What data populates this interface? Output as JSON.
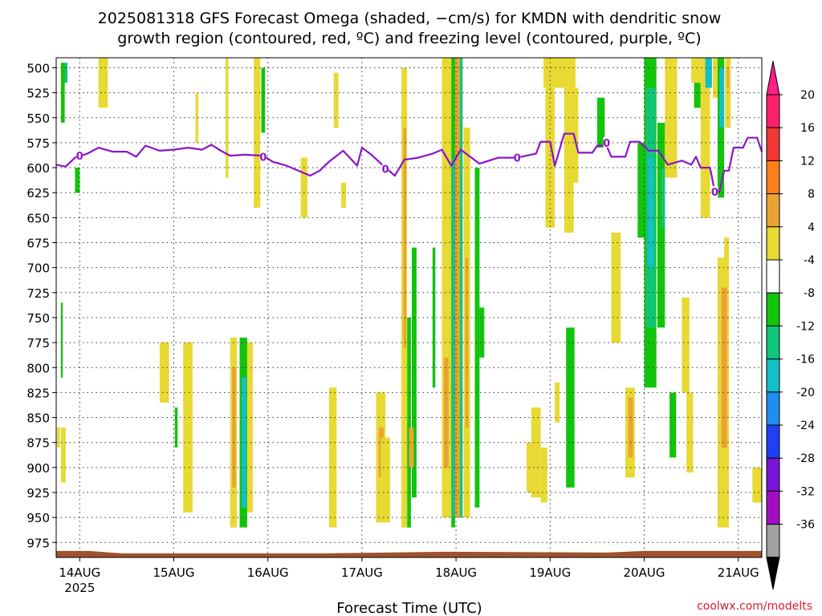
{
  "chart_data": {
    "type": "heatmap",
    "title_line1": "2025081318 GFS Forecast Omega (shaded, −cm/s) for KMDN with dendritic snow",
    "title_line2": "growth region (contoured, red, ºC) and freezing level (contoured, purple, ºC)",
    "xlabel": "Forecast Time (UTC)",
    "credit": "coolwx.com/modelts",
    "y_axis": {
      "labels": [
        "500",
        "525",
        "550",
        "575",
        "600",
        "625",
        "650",
        "675",
        "700",
        "725",
        "750",
        "775",
        "800",
        "825",
        "850",
        "875",
        "900",
        "925",
        "950",
        "975"
      ],
      "range_hpa": [
        490,
        990
      ]
    },
    "x_axis": {
      "ticks": [
        {
          "label": "14AUG",
          "sublabel": "2025",
          "day": 0
        },
        {
          "label": "15AUG",
          "sublabel": "",
          "day": 1
        },
        {
          "label": "16AUG",
          "sublabel": "",
          "day": 2
        },
        {
          "label": "17AUG",
          "sublabel": "",
          "day": 3
        },
        {
          "label": "18AUG",
          "sublabel": "",
          "day": 4
        },
        {
          "label": "19AUG",
          "sublabel": "",
          "day": 5
        },
        {
          "label": "20AUG",
          "sublabel": "",
          "day": 6
        },
        {
          "label": "21AUG",
          "sublabel": "",
          "day": 7
        }
      ],
      "range_days": [
        -0.25,
        7.25
      ]
    },
    "grid": true,
    "legend_position": "right",
    "colorbar": {
      "labels": [
        "20",
        "16",
        "12",
        "8",
        "4",
        "-4",
        "-8",
        "-12",
        "-16",
        "-20",
        "-24",
        "-28",
        "-32",
        "-36"
      ],
      "colors": [
        "#ff1f6b",
        "#f23737",
        "#ff7f1a",
        "#eaa333",
        "#e8d933",
        "#ffffff",
        "#12c40c",
        "#12c47a",
        "#14bfc7",
        "#1f8cf0",
        "#1f3ff2",
        "#7a14d6",
        "#a20fc2",
        "#a0a0a0"
      ],
      "top_arrow_color": "#ff1f89",
      "bottom_arrow_color": "#000000"
    },
    "terrain_color": "#a0522d",
    "freezing_level": {
      "color": "#8c14c8",
      "label": "0",
      "points": [
        [
          -0.25,
          597
        ],
        [
          -0.15,
          599
        ],
        [
          -0.05,
          590
        ],
        [
          0.08,
          586
        ],
        [
          0.2,
          580
        ],
        [
          0.35,
          584
        ],
        [
          0.5,
          584
        ],
        [
          0.6,
          589
        ],
        [
          0.7,
          578
        ],
        [
          0.85,
          583
        ],
        [
          1.0,
          582
        ],
        [
          1.15,
          580
        ],
        [
          1.3,
          582
        ],
        [
          1.4,
          577
        ],
        [
          1.5,
          583
        ],
        [
          1.6,
          588
        ],
        [
          1.75,
          587
        ],
        [
          1.95,
          588
        ],
        [
          2.05,
          594
        ],
        [
          2.2,
          598
        ],
        [
          2.3,
          602
        ],
        [
          2.45,
          608
        ],
        [
          2.55,
          603
        ],
        [
          2.65,
          594
        ],
        [
          2.8,
          583
        ],
        [
          2.95,
          598
        ],
        [
          3.0,
          580
        ],
        [
          3.1,
          587
        ],
        [
          3.25,
          600
        ],
        [
          3.35,
          608
        ],
        [
          3.45,
          592
        ],
        [
          3.6,
          590
        ],
        [
          3.75,
          586
        ],
        [
          3.85,
          582
        ],
        [
          3.95,
          598
        ],
        [
          4.05,
          582
        ],
        [
          4.15,
          589
        ],
        [
          4.25,
          596
        ],
        [
          4.45,
          590
        ],
        [
          4.65,
          590
        ],
        [
          4.85,
          586
        ],
        [
          4.9,
          574
        ],
        [
          5.0,
          574
        ],
        [
          5.05,
          598
        ],
        [
          5.15,
          566
        ],
        [
          5.25,
          566
        ],
        [
          5.3,
          585
        ],
        [
          5.45,
          585
        ],
        [
          5.5,
          578
        ],
        [
          5.6,
          578
        ],
        [
          5.65,
          589
        ],
        [
          5.8,
          589
        ],
        [
          5.85,
          574
        ],
        [
          5.95,
          574
        ],
        [
          6.05,
          583
        ],
        [
          6.15,
          583
        ],
        [
          6.25,
          597
        ],
        [
          6.4,
          593
        ],
        [
          6.5,
          597
        ],
        [
          6.55,
          589
        ],
        [
          6.6,
          600
        ],
        [
          6.7,
          600
        ],
        [
          6.75,
          624
        ],
        [
          6.8,
          624
        ],
        [
          6.85,
          603
        ],
        [
          6.9,
          603
        ],
        [
          6.95,
          580
        ],
        [
          7.05,
          580
        ],
        [
          7.1,
          570
        ],
        [
          7.2,
          570
        ],
        [
          7.25,
          584
        ]
      ],
      "label_positions": [
        [
          0.0,
          588
        ],
        [
          1.95,
          589
        ],
        [
          3.25,
          601
        ],
        [
          4.65,
          590
        ],
        [
          5.6,
          575
        ],
        [
          6.75,
          624
        ]
      ]
    },
    "omega_patches": [
      {
        "t0": -0.2,
        "t1": -0.16,
        "p0": 495,
        "p1": 555,
        "value": -6
      },
      {
        "t0": -0.16,
        "t1": -0.13,
        "p0": 495,
        "p1": 515,
        "value": -9
      },
      {
        "t0": -0.05,
        "t1": 0.0,
        "p0": 600,
        "p1": 625,
        "value": -6
      },
      {
        "t0": -0.2,
        "t1": -0.18,
        "p0": 735,
        "p1": 810,
        "value": -6
      },
      {
        "t0": -0.2,
        "t1": -0.15,
        "p0": 860,
        "p1": 915,
        "value": 6
      },
      {
        "t0": -0.24,
        "t1": -0.21,
        "p0": 860,
        "p1": 880,
        "value": 6
      },
      {
        "t0": 0.2,
        "t1": 0.3,
        "p0": 490,
        "p1": 540,
        "value": 6
      },
      {
        "t0": 0.85,
        "t1": 0.95,
        "p0": 775,
        "p1": 835,
        "value": 6
      },
      {
        "t0": 1.01,
        "t1": 1.04,
        "p0": 840,
        "p1": 880,
        "value": -6
      },
      {
        "t0": 1.1,
        "t1": 1.2,
        "p0": 775,
        "p1": 945,
        "value": 6
      },
      {
        "t0": 1.23,
        "t1": 1.26,
        "p0": 525,
        "p1": 575,
        "value": 6
      },
      {
        "t0": 1.55,
        "t1": 1.58,
        "p0": 490,
        "p1": 610,
        "value": 6
      },
      {
        "t0": 1.85,
        "t1": 1.92,
        "p0": 490,
        "p1": 640,
        "value": 6
      },
      {
        "t0": 1.93,
        "t1": 1.97,
        "p0": 500,
        "p1": 565,
        "value": -6
      },
      {
        "t0": 1.6,
        "t1": 1.67,
        "p0": 770,
        "p1": 960,
        "value": 6
      },
      {
        "t0": 1.62,
        "t1": 1.66,
        "p0": 800,
        "p1": 920,
        "value": 10
      },
      {
        "t0": 1.7,
        "t1": 1.78,
        "p0": 770,
        "p1": 960,
        "value": -6
      },
      {
        "t0": 1.72,
        "t1": 1.77,
        "p0": 810,
        "p1": 940,
        "value": -12
      },
      {
        "t0": 1.78,
        "t1": 1.84,
        "p0": 775,
        "p1": 945,
        "value": 6
      },
      {
        "t0": 2.35,
        "t1": 2.42,
        "p0": 590,
        "p1": 650,
        "value": 6
      },
      {
        "t0": 2.7,
        "t1": 2.75,
        "p0": 505,
        "p1": 560,
        "value": 6
      },
      {
        "t0": 2.78,
        "t1": 2.83,
        "p0": 615,
        "p1": 640,
        "value": 6
      },
      {
        "t0": 2.65,
        "t1": 2.73,
        "p0": 820,
        "p1": 960,
        "value": 6
      },
      {
        "t0": 3.15,
        "t1": 3.25,
        "p0": 825,
        "p1": 955,
        "value": 6
      },
      {
        "t0": 3.18,
        "t1": 3.23,
        "p0": 860,
        "p1": 910,
        "value": 10
      },
      {
        "t0": 3.2,
        "t1": 3.3,
        "p0": 870,
        "p1": 955,
        "value": 6
      },
      {
        "t0": 3.42,
        "t1": 3.48,
        "p0": 500,
        "p1": 960,
        "value": 6
      },
      {
        "t0": 3.44,
        "t1": 3.47,
        "p0": 560,
        "p1": 780,
        "value": 10
      },
      {
        "t0": 3.48,
        "t1": 3.52,
        "p0": 750,
        "p1": 960,
        "value": -6
      },
      {
        "t0": 3.53,
        "t1": 3.58,
        "p0": 680,
        "p1": 930,
        "value": -6
      },
      {
        "t0": 3.5,
        "t1": 3.55,
        "p0": 860,
        "p1": 900,
        "value": 10
      },
      {
        "t0": 3.75,
        "t1": 3.78,
        "p0": 680,
        "p1": 820,
        "value": -6
      },
      {
        "t0": 3.85,
        "t1": 3.95,
        "p0": 490,
        "p1": 950,
        "value": 6
      },
      {
        "t0": 3.87,
        "t1": 3.92,
        "p0": 790,
        "p1": 900,
        "value": 10
      },
      {
        "t0": 3.95,
        "t1": 3.99,
        "p0": 490,
        "p1": 960,
        "value": -6
      },
      {
        "t0": 3.96,
        "t1": 3.98,
        "p0": 590,
        "p1": 950,
        "value": -14
      },
      {
        "t0": 3.99,
        "t1": 4.04,
        "p0": 490,
        "p1": 950,
        "value": 10
      },
      {
        "t0": 4.04,
        "t1": 4.07,
        "p0": 490,
        "p1": 950,
        "value": -8
      },
      {
        "t0": 4.08,
        "t1": 4.15,
        "p0": 560,
        "p1": 950,
        "value": 6
      },
      {
        "t0": 4.1,
        "t1": 4.13,
        "p0": 690,
        "p1": 860,
        "value": 10
      },
      {
        "t0": 4.2,
        "t1": 4.25,
        "p0": 600,
        "p1": 940,
        "value": -6
      },
      {
        "t0": 4.25,
        "t1": 4.3,
        "p0": 740,
        "p1": 790,
        "value": -6
      },
      {
        "t0": 4.8,
        "t1": 4.9,
        "p0": 840,
        "p1": 930,
        "value": 6
      },
      {
        "t0": 4.9,
        "t1": 4.97,
        "p0": 880,
        "p1": 935,
        "value": 6
      },
      {
        "t0": 4.75,
        "t1": 4.82,
        "p0": 875,
        "p1": 925,
        "value": 6
      },
      {
        "t0": 4.93,
        "t1": 5.27,
        "p0": 490,
        "p1": 520,
        "value": 6
      },
      {
        "t0": 4.95,
        "t1": 5.05,
        "p0": 520,
        "p1": 660,
        "value": 6
      },
      {
        "t0": 5.15,
        "t1": 5.25,
        "p0": 520,
        "p1": 665,
        "value": 6
      },
      {
        "t0": 5.2,
        "t1": 5.3,
        "p0": 520,
        "p1": 615,
        "value": 6
      },
      {
        "t0": 5.05,
        "t1": 5.1,
        "p0": 815,
        "p1": 855,
        "value": 6
      },
      {
        "t0": 5.17,
        "t1": 5.26,
        "p0": 760,
        "p1": 920,
        "value": -6
      },
      {
        "t0": 5.65,
        "t1": 5.75,
        "p0": 665,
        "p1": 775,
        "value": 6
      },
      {
        "t0": 5.5,
        "t1": 5.58,
        "p0": 530,
        "p1": 580,
        "value": -6
      },
      {
        "t0": 5.8,
        "t1": 5.9,
        "p0": 820,
        "p1": 910,
        "value": 6
      },
      {
        "t0": 5.83,
        "t1": 5.88,
        "p0": 830,
        "p1": 890,
        "value": 10
      },
      {
        "t0": 5.93,
        "t1": 6.0,
        "p0": 575,
        "p1": 670,
        "value": -6
      },
      {
        "t0": 6.0,
        "t1": 6.13,
        "p0": 490,
        "p1": 820,
        "value": -6
      },
      {
        "t0": 6.02,
        "t1": 6.12,
        "p0": 520,
        "p1": 760,
        "value": -10
      },
      {
        "t0": 6.04,
        "t1": 6.1,
        "p0": 590,
        "p1": 700,
        "value": -14
      },
      {
        "t0": 6.14,
        "t1": 6.22,
        "p0": 555,
        "p1": 760,
        "value": -6
      },
      {
        "t0": 6.18,
        "t1": 6.22,
        "p0": 600,
        "p1": 660,
        "value": -10
      },
      {
        "t0": 6.22,
        "t1": 6.35,
        "p0": 490,
        "p1": 610,
        "value": 6
      },
      {
        "t0": 6.27,
        "t1": 6.34,
        "p0": 825,
        "p1": 890,
        "value": -6
      },
      {
        "t0": 6.4,
        "t1": 6.48,
        "p0": 730,
        "p1": 825,
        "value": 6
      },
      {
        "t0": 6.45,
        "t1": 6.52,
        "p0": 825,
        "p1": 905,
        "value": 6
      },
      {
        "t0": 6.5,
        "t1": 6.6,
        "p0": 490,
        "p1": 515,
        "value": 6
      },
      {
        "t0": 6.53,
        "t1": 6.6,
        "p0": 515,
        "p1": 540,
        "value": -6
      },
      {
        "t0": 6.6,
        "t1": 6.7,
        "p0": 490,
        "p1": 650,
        "value": 6
      },
      {
        "t0": 6.65,
        "t1": 6.72,
        "p0": 490,
        "p1": 520,
        "value": -12
      },
      {
        "t0": 6.73,
        "t1": 6.78,
        "p0": 490,
        "p1": 530,
        "value": 6
      },
      {
        "t0": 6.78,
        "t1": 6.85,
        "p0": 490,
        "p1": 630,
        "value": -6
      },
      {
        "t0": 6.8,
        "t1": 6.85,
        "p0": 500,
        "p1": 560,
        "value": -12
      },
      {
        "t0": 6.86,
        "t1": 6.92,
        "p0": 490,
        "p1": 560,
        "value": 6
      },
      {
        "t0": 6.88,
        "t1": 6.9,
        "p0": 500,
        "p1": 520,
        "value": 10
      },
      {
        "t0": 6.78,
        "t1": 6.9,
        "p0": 690,
        "p1": 960,
        "value": 6
      },
      {
        "t0": 6.82,
        "t1": 6.88,
        "p0": 720,
        "p1": 880,
        "value": 10
      },
      {
        "t0": 6.85,
        "t1": 6.9,
        "p0": 670,
        "p1": 700,
        "value": 6
      },
      {
        "t0": 7.15,
        "t1": 7.25,
        "p0": 900,
        "p1": 935,
        "value": 6
      }
    ]
  }
}
